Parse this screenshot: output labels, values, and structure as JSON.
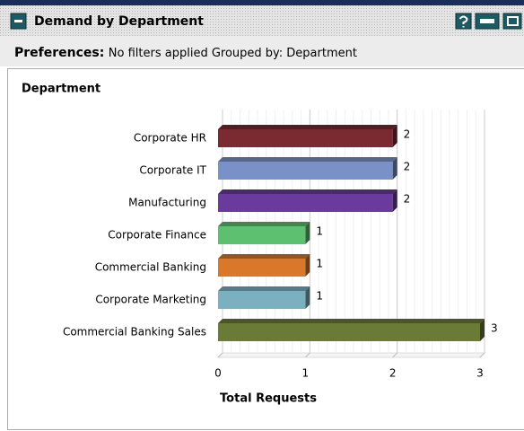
{
  "header": {
    "title": "Demand by Department"
  },
  "preferences": {
    "label": "Preferences:",
    "text": "No filters applied Grouped by: Department"
  },
  "chart_data": {
    "type": "bar",
    "orientation": "horizontal",
    "y_axis_title": "Department",
    "x_axis_title": "Total Requests",
    "categories": [
      "Corporate HR",
      "Corporate IT",
      "Manufacturing",
      "Corporate Finance",
      "Commercial Banking",
      "Corporate Marketing",
      "Commercial Banking Sales"
    ],
    "values": [
      2,
      2,
      2,
      1,
      1,
      1,
      3
    ],
    "colors": [
      "#7a2a30",
      "#7a91c8",
      "#6a3a9c",
      "#5cc070",
      "#d9782a",
      "#7ab0c0",
      "#6b7a35"
    ],
    "xlim": [
      0,
      3
    ],
    "xticks": [
      0,
      1,
      2,
      3
    ],
    "grid": true,
    "value_labels_shown": true
  }
}
